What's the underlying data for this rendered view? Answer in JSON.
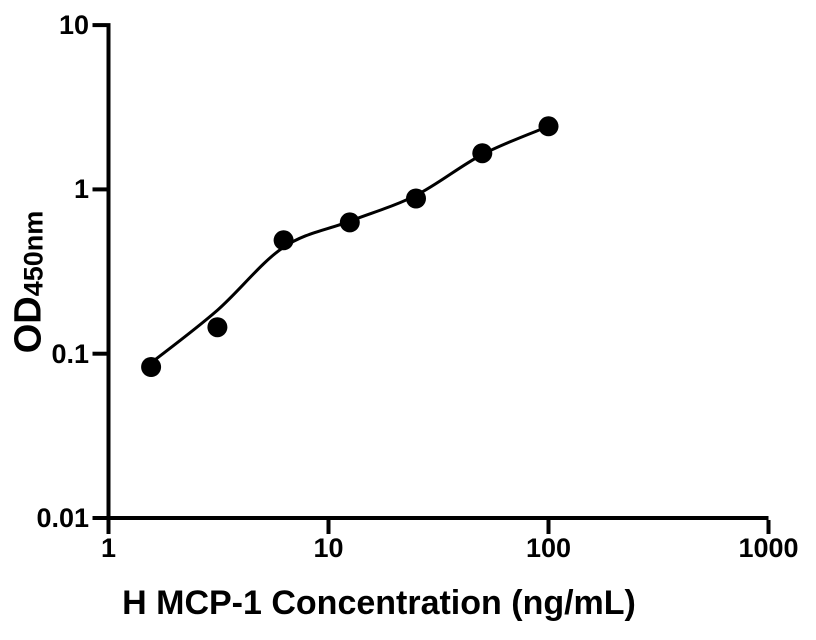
{
  "figure": {
    "background": "#ffffff",
    "ink_color": "#000000"
  },
  "chart_data": {
    "type": "scatter",
    "title": "",
    "xlabel": "H MCP-1 Concentration (ng/mL)",
    "ylabel": "OD",
    "ylabel_subscript": "450nm",
    "x_scale": "log",
    "y_scale": "log",
    "xlim": [
      1,
      1000
    ],
    "ylim": [
      0.01,
      10
    ],
    "x_ticks": [
      1,
      10,
      100,
      1000
    ],
    "x_tick_labels": [
      "1",
      "10",
      "100",
      "1000"
    ],
    "y_ticks": [
      10,
      1,
      0.1,
      0.01
    ],
    "y_tick_labels": [
      "10",
      "1",
      "0.1",
      "0.01"
    ],
    "grid": false,
    "legend": "none",
    "series": [
      {
        "name": "standard-points",
        "marker": "filled-circle",
        "marker_color": "#000000",
        "points": [
          {
            "x": 1.5625,
            "y": 0.083
          },
          {
            "x": 3.125,
            "y": 0.145
          },
          {
            "x": 6.25,
            "y": 0.49
          },
          {
            "x": 12.5,
            "y": 0.63
          },
          {
            "x": 25,
            "y": 0.88
          },
          {
            "x": 50,
            "y": 1.66
          },
          {
            "x": 100,
            "y": 2.42
          }
        ]
      }
    ],
    "fit_curve": {
      "name": "fitted-standard-curve",
      "color": "#000000",
      "points": [
        {
          "x": 1.5625,
          "y": 0.088
        },
        {
          "x": 3.125,
          "y": 0.184
        },
        {
          "x": 6.25,
          "y": 0.445
        },
        {
          "x": 12.5,
          "y": 0.64
        },
        {
          "x": 25,
          "y": 0.92
        },
        {
          "x": 50,
          "y": 1.63
        },
        {
          "x": 100,
          "y": 2.42
        }
      ]
    }
  }
}
